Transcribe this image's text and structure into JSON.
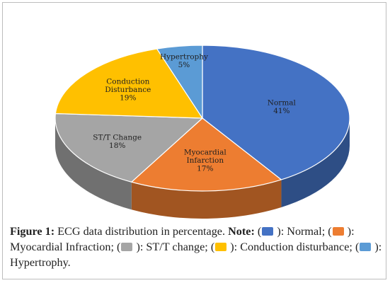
{
  "chart_data": {
    "type": "pie",
    "slices": [
      {
        "label_lines": [
          "Normal"
        ],
        "value": 41,
        "value_label": "41%",
        "color": "#4472C4"
      },
      {
        "label_lines": [
          "Myocardial",
          "Infarction"
        ],
        "value": 17,
        "value_label": "17%",
        "color": "#ED7D31"
      },
      {
        "label_lines": [
          "ST/T Change"
        ],
        "value": 18,
        "value_label": "18%",
        "color": "#A5A5A5"
      },
      {
        "label_lines": [
          "Conduction",
          "Disturbance"
        ],
        "value": 19,
        "value_label": "19%",
        "color": "#FFC000"
      },
      {
        "label_lines": [
          "Hypertrophy"
        ],
        "value": 5,
        "value_label": "5%",
        "color": "#5B9BD5"
      }
    ],
    "style": "3d-tilted"
  },
  "caption": {
    "figure_label": "Figure 1:",
    "text": "ECG data distribution in percentage.",
    "note_label": "Note:",
    "items": [
      {
        "text": "): Normal;",
        "color": "#4472C4"
      },
      {
        "text": "): Myocardial Infraction;",
        "color": "#ED7D31"
      },
      {
        "text": "): ST/T change;",
        "color": "#A5A5A5"
      },
      {
        "text": "): Conduction disturbance;",
        "color": "#FFC000"
      },
      {
        "text": "): Hypertrophy.",
        "color": "#5B9BD5"
      }
    ]
  }
}
